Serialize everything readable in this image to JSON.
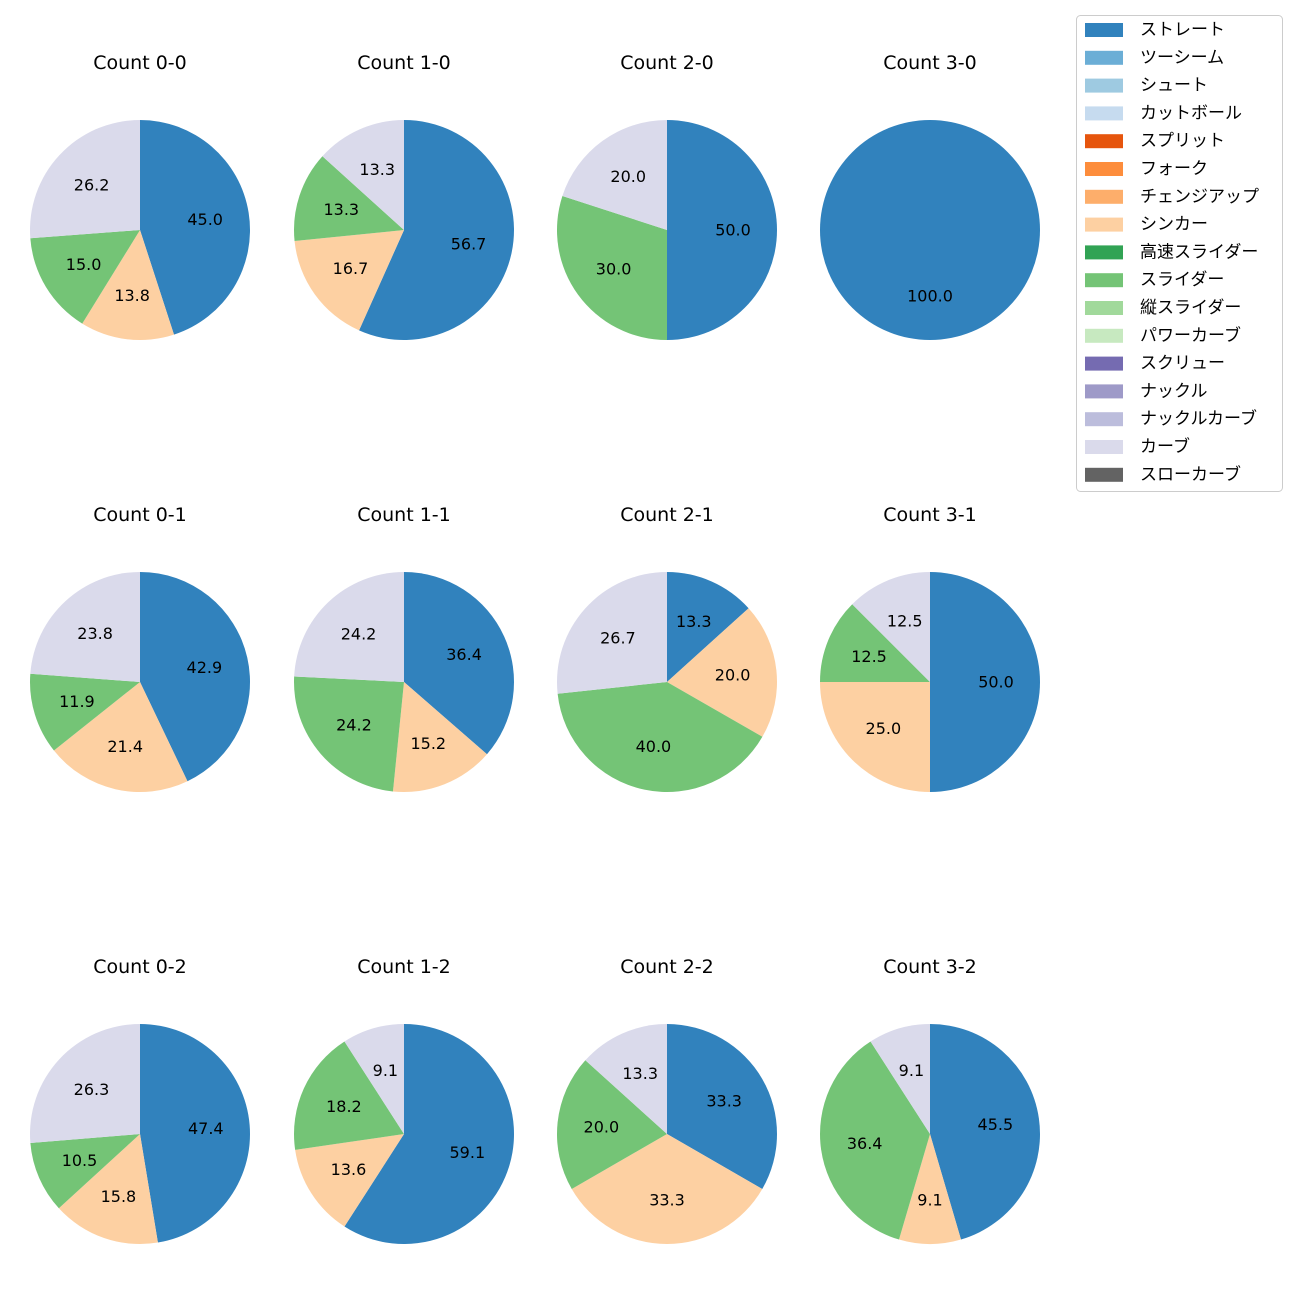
{
  "pitch_types": [
    {
      "name": "ストレート",
      "color": "#3182bd"
    },
    {
      "name": "ツーシーム",
      "color": "#6baed6"
    },
    {
      "name": "シュート",
      "color": "#9ecae1"
    },
    {
      "name": "カットボール",
      "color": "#c6dbef"
    },
    {
      "name": "スプリット",
      "color": "#e6550d"
    },
    {
      "name": "フォーク",
      "color": "#fd8d3c"
    },
    {
      "name": "チェンジアップ",
      "color": "#fdae6b"
    },
    {
      "name": "シンカー",
      "color": "#fdd0a2"
    },
    {
      "name": "高速スライダー",
      "color": "#31a354"
    },
    {
      "name": "スライダー",
      "color": "#74c476"
    },
    {
      "name": "縦スライダー",
      "color": "#a1d99b"
    },
    {
      "name": "パワーカーブ",
      "color": "#c7e9c0"
    },
    {
      "name": "スクリュー",
      "color": "#756bb1"
    },
    {
      "name": "ナックル",
      "color": "#9e9ac8"
    },
    {
      "name": "ナックルカーブ",
      "color": "#bcbddc"
    },
    {
      "name": "カーブ",
      "color": "#dadaeb"
    },
    {
      "name": "スローカーブ",
      "color": "#636363"
    }
  ],
  "chart_data": [
    {
      "type": "pie",
      "title": "Count 0-0",
      "slices": [
        {
          "label": "ストレート",
          "value": 45.0
        },
        {
          "label": "シンカー",
          "value": 13.8
        },
        {
          "label": "スライダー",
          "value": 15.0
        },
        {
          "label": "カーブ",
          "value": 26.2
        }
      ]
    },
    {
      "type": "pie",
      "title": "Count 1-0",
      "slices": [
        {
          "label": "ストレート",
          "value": 56.7
        },
        {
          "label": "シンカー",
          "value": 16.7
        },
        {
          "label": "スライダー",
          "value": 13.3
        },
        {
          "label": "カーブ",
          "value": 13.3
        }
      ]
    },
    {
      "type": "pie",
      "title": "Count 2-0",
      "slices": [
        {
          "label": "ストレート",
          "value": 50.0
        },
        {
          "label": "スライダー",
          "value": 30.0
        },
        {
          "label": "カーブ",
          "value": 20.0
        }
      ]
    },
    {
      "type": "pie",
      "title": "Count 3-0",
      "slices": [
        {
          "label": "ストレート",
          "value": 100.0
        }
      ]
    },
    {
      "type": "pie",
      "title": "Count 0-1",
      "slices": [
        {
          "label": "ストレート",
          "value": 42.9
        },
        {
          "label": "シンカー",
          "value": 21.4
        },
        {
          "label": "スライダー",
          "value": 11.9
        },
        {
          "label": "カーブ",
          "value": 23.8
        }
      ]
    },
    {
      "type": "pie",
      "title": "Count 1-1",
      "slices": [
        {
          "label": "ストレート",
          "value": 36.4
        },
        {
          "label": "シンカー",
          "value": 15.2
        },
        {
          "label": "スライダー",
          "value": 24.2
        },
        {
          "label": "カーブ",
          "value": 24.2
        }
      ]
    },
    {
      "type": "pie",
      "title": "Count 2-1",
      "slices": [
        {
          "label": "ストレート",
          "value": 13.3
        },
        {
          "label": "シンカー",
          "value": 20.0
        },
        {
          "label": "スライダー",
          "value": 40.0
        },
        {
          "label": "カーブ",
          "value": 26.7
        }
      ]
    },
    {
      "type": "pie",
      "title": "Count 3-1",
      "slices": [
        {
          "label": "ストレート",
          "value": 50.0
        },
        {
          "label": "シンカー",
          "value": 25.0
        },
        {
          "label": "スライダー",
          "value": 12.5
        },
        {
          "label": "カーブ",
          "value": 12.5
        }
      ]
    },
    {
      "type": "pie",
      "title": "Count 0-2",
      "slices": [
        {
          "label": "ストレート",
          "value": 47.4
        },
        {
          "label": "シンカー",
          "value": 15.8
        },
        {
          "label": "スライダー",
          "value": 10.5
        },
        {
          "label": "カーブ",
          "value": 26.3
        }
      ]
    },
    {
      "type": "pie",
      "title": "Count 1-2",
      "slices": [
        {
          "label": "ストレート",
          "value": 59.1
        },
        {
          "label": "シンカー",
          "value": 13.6
        },
        {
          "label": "スライダー",
          "value": 18.2
        },
        {
          "label": "カーブ",
          "value": 9.1
        }
      ]
    },
    {
      "type": "pie",
      "title": "Count 2-2",
      "slices": [
        {
          "label": "ストレート",
          "value": 33.3
        },
        {
          "label": "シンカー",
          "value": 33.3
        },
        {
          "label": "スライダー",
          "value": 20.0
        },
        {
          "label": "カーブ",
          "value": 13.3
        }
      ]
    },
    {
      "type": "pie",
      "title": "Count 3-2",
      "slices": [
        {
          "label": "ストレート",
          "value": 45.5
        },
        {
          "label": "シンカー",
          "value": 9.1
        },
        {
          "label": "スライダー",
          "value": 36.4
        },
        {
          "label": "カーブ",
          "value": 9.1
        }
      ]
    }
  ]
}
